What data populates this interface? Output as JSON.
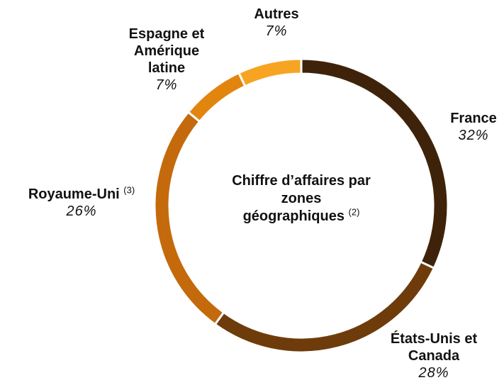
{
  "chart_data": {
    "type": "donut",
    "title": "Chiffre d’affaires par zones géographiques",
    "title_note": "(2)",
    "categories": [
      "France",
      "États-Unis et Canada",
      "Royaume-Uni",
      "Espagne et Amérique latine",
      "Autres"
    ],
    "category_notes": [
      null,
      null,
      "(3)",
      null,
      null
    ],
    "values": [
      32,
      28,
      26,
      7,
      7
    ],
    "value_labels": [
      "32%",
      "28%",
      "26%",
      "7%",
      "7%"
    ],
    "colors": [
      "#3e230a",
      "#6e3c0b",
      "#c46a0c",
      "#e2850f",
      "#f7a423"
    ]
  }
}
